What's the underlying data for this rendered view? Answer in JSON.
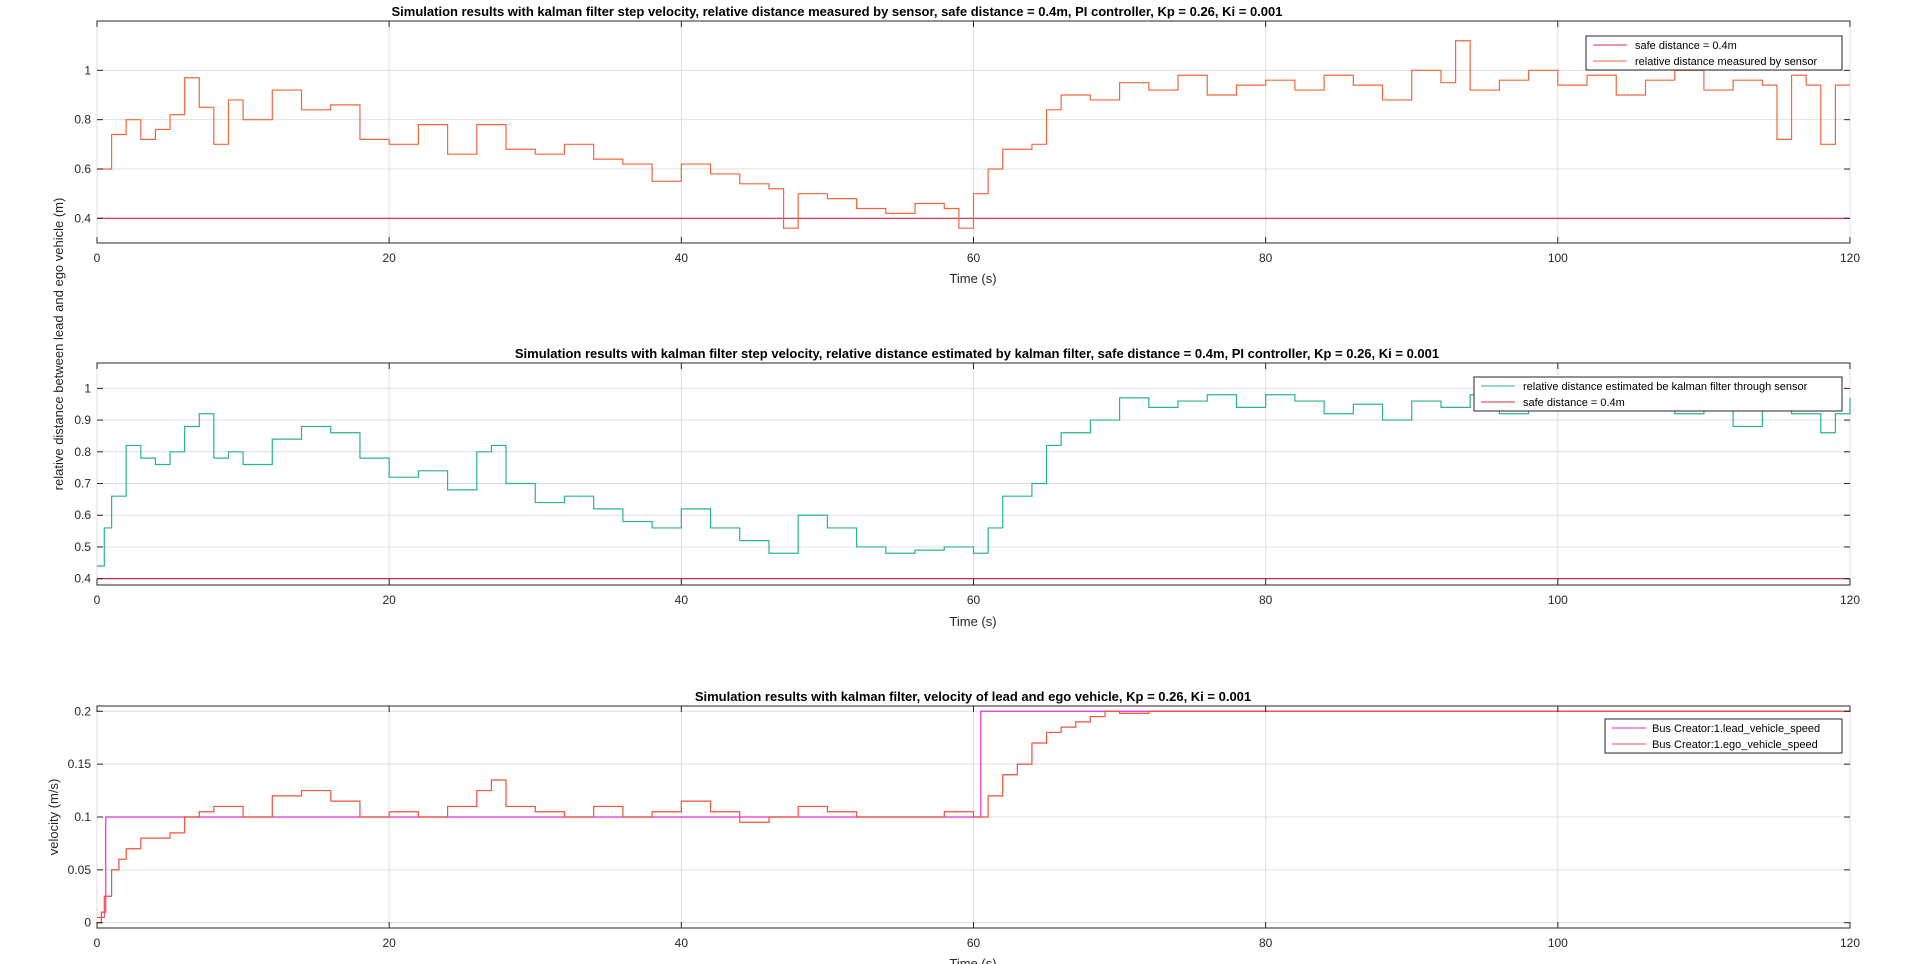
{
  "figure": {
    "shared_ylabel": "relative distance between lead and ego vehicle (m)"
  },
  "chart_data": [
    {
      "type": "line",
      "title": "Simulation results with kalman filter step velocity, relative distance measured by sensor, safe distance = 0.4m, PI controller, Kp = 0.26, Ki = 0.001",
      "xlabel": "Time (s)",
      "ylabel": "",
      "xlim": [
        0,
        120
      ],
      "ylim": [
        0.3,
        1.2
      ],
      "xticks": [
        0,
        20,
        40,
        60,
        80,
        100,
        120
      ],
      "yticks": [
        0.4,
        0.6,
        0.8,
        1
      ],
      "grid": true,
      "legend_position": "top-right",
      "series": [
        {
          "name": "safe distance = 0.4m",
          "color": "#d6284b",
          "step": false,
          "x": [
            0,
            120
          ],
          "y": [
            0.4,
            0.4
          ]
        },
        {
          "name": "relative distance measured by sensor",
          "color": "#f0683e",
          "step": true,
          "x": [
            0,
            1,
            2,
            3,
            4,
            5,
            6,
            7,
            8,
            9,
            10,
            12,
            14,
            16,
            18,
            20,
            22,
            24,
            26,
            28,
            30,
            32,
            34,
            36,
            38,
            40,
            42,
            44,
            46,
            47,
            48,
            50,
            52,
            54,
            56,
            58,
            59,
            60,
            61,
            62,
            64,
            65,
            66,
            68,
            70,
            72,
            74,
            76,
            78,
            80,
            82,
            84,
            86,
            88,
            90,
            92,
            93,
            94,
            96,
            98,
            100,
            102,
            104,
            106,
            108,
            110,
            112,
            114,
            115,
            116,
            117,
            118,
            119,
            120
          ],
          "y": [
            0.6,
            0.74,
            0.8,
            0.72,
            0.76,
            0.82,
            0.97,
            0.85,
            0.7,
            0.88,
            0.8,
            0.92,
            0.84,
            0.86,
            0.72,
            0.7,
            0.78,
            0.66,
            0.78,
            0.68,
            0.66,
            0.7,
            0.64,
            0.62,
            0.55,
            0.62,
            0.58,
            0.54,
            0.52,
            0.36,
            0.5,
            0.48,
            0.44,
            0.42,
            0.46,
            0.44,
            0.36,
            0.5,
            0.6,
            0.68,
            0.7,
            0.84,
            0.9,
            0.88,
            0.95,
            0.92,
            0.98,
            0.9,
            0.94,
            0.96,
            0.92,
            0.98,
            0.94,
            0.88,
            1.0,
            0.95,
            1.12,
            0.92,
            0.96,
            1.0,
            0.94,
            0.98,
            0.9,
            0.96,
            1.0,
            0.92,
            0.96,
            0.94,
            0.72,
            0.98,
            0.94,
            0.7,
            0.94,
            0.94
          ]
        }
      ]
    },
    {
      "type": "line",
      "title": "Simulation results with kalman filter step velocity, relative distance estimated by kalman filter, safe distance = 0.4m, PI controller, Kp = 0.26, Ki = 0.001",
      "xlabel": "Time (s)",
      "ylabel": "",
      "xlim": [
        0,
        120
      ],
      "ylim": [
        0.38,
        1.08
      ],
      "xticks": [
        0,
        20,
        40,
        60,
        80,
        100,
        120
      ],
      "yticks": [
        0.4,
        0.5,
        0.6,
        0.7,
        0.8,
        0.9,
        1
      ],
      "grid": true,
      "legend_position": "top-right",
      "series": [
        {
          "name": "relative distance estimated be kalman filter through sensor",
          "color": "#2bb58c",
          "step": true,
          "x": [
            0,
            0.5,
            1,
            2,
            3,
            4,
            5,
            6,
            7,
            8,
            9,
            10,
            12,
            14,
            16,
            18,
            20,
            22,
            24,
            26,
            27,
            28,
            30,
            32,
            34,
            36,
            38,
            40,
            42,
            44,
            46,
            48,
            50,
            52,
            54,
            56,
            58,
            60,
            61,
            62,
            64,
            65,
            66,
            68,
            70,
            72,
            74,
            76,
            78,
            80,
            82,
            84,
            86,
            88,
            90,
            92,
            94,
            96,
            98,
            100,
            102,
            104,
            106,
            108,
            110,
            112,
            114,
            116,
            118,
            119,
            120
          ],
          "y": [
            0.44,
            0.56,
            0.66,
            0.82,
            0.78,
            0.76,
            0.8,
            0.88,
            0.92,
            0.78,
            0.8,
            0.76,
            0.84,
            0.88,
            0.86,
            0.78,
            0.72,
            0.74,
            0.68,
            0.8,
            0.82,
            0.7,
            0.64,
            0.66,
            0.62,
            0.58,
            0.56,
            0.62,
            0.56,
            0.52,
            0.48,
            0.6,
            0.56,
            0.5,
            0.48,
            0.49,
            0.5,
            0.48,
            0.56,
            0.66,
            0.7,
            0.82,
            0.86,
            0.9,
            0.97,
            0.94,
            0.96,
            0.98,
            0.94,
            0.98,
            0.96,
            0.92,
            0.95,
            0.9,
            0.96,
            0.94,
            0.98,
            0.92,
            0.95,
            0.94,
            0.97,
            0.93,
            0.96,
            0.92,
            0.94,
            0.88,
            0.96,
            0.92,
            0.86,
            0.92,
            0.97
          ]
        },
        {
          "name": "safe distance = 0.4m",
          "color": "#d6284b",
          "step": false,
          "x": [
            0,
            120
          ],
          "y": [
            0.4,
            0.4
          ]
        }
      ]
    },
    {
      "type": "line",
      "title": "Simulation results with kalman filter, velocity of lead and ego vehicle, Kp = 0.26, Ki = 0.001",
      "xlabel": "Time (s)",
      "ylabel": "velocity (m/s)",
      "xlim": [
        0,
        120
      ],
      "ylim": [
        -0.005,
        0.205
      ],
      "xticks": [
        0,
        20,
        40,
        60,
        80,
        100,
        120
      ],
      "yticks": [
        0,
        0.05,
        0.1,
        0.15,
        0.2
      ],
      "grid": true,
      "legend_position": "top-right",
      "series": [
        {
          "name": "Bus Creator:1.lead_vehicle_speed",
          "color": "#e52fd0",
          "step": true,
          "x": [
            0,
            0.3,
            0.6,
            60.5,
            120
          ],
          "y": [
            0,
            0.01,
            0.1,
            0.2,
            0.2
          ]
        },
        {
          "name": "Bus Creator:1.ego_vehicle_speed",
          "color": "#f0523a",
          "step": true,
          "x": [
            0,
            0.5,
            1,
            1.5,
            2,
            3,
            4,
            5,
            6,
            7,
            8,
            10,
            12,
            14,
            16,
            18,
            20,
            22,
            24,
            26,
            27,
            28,
            30,
            32,
            34,
            36,
            38,
            40,
            42,
            44,
            46,
            48,
            50,
            52,
            54,
            56,
            58,
            60,
            61,
            62,
            63,
            64,
            65,
            66,
            67,
            68,
            69,
            70,
            72,
            74,
            76,
            78,
            80,
            120
          ],
          "y": [
            0.005,
            0.025,
            0.05,
            0.06,
            0.07,
            0.08,
            0.08,
            0.085,
            0.1,
            0.105,
            0.11,
            0.1,
            0.12,
            0.125,
            0.115,
            0.1,
            0.105,
            0.1,
            0.11,
            0.125,
            0.135,
            0.11,
            0.105,
            0.1,
            0.11,
            0.1,
            0.105,
            0.115,
            0.105,
            0.095,
            0.1,
            0.11,
            0.105,
            0.1,
            0.1,
            0.1,
            0.105,
            0.1,
            0.12,
            0.14,
            0.15,
            0.17,
            0.18,
            0.185,
            0.19,
            0.195,
            0.2,
            0.198,
            0.2,
            0.2,
            0.2,
            0.2,
            0.2,
            0.2
          ]
        }
      ]
    }
  ]
}
